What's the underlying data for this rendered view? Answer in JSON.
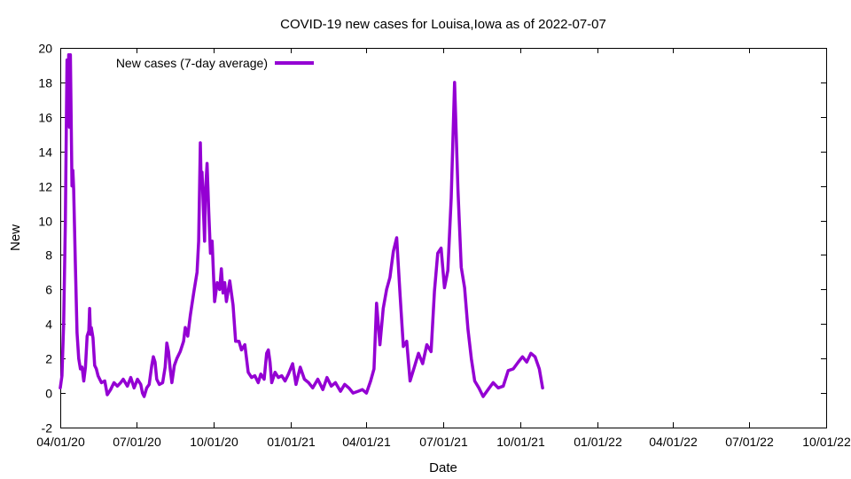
{
  "chart_data": {
    "type": "line",
    "title": "COVID-19 new cases for Louisa,Iowa as of 2022-07-07",
    "xlabel": "Date",
    "ylabel": "New",
    "ylim": [
      -2,
      20
    ],
    "yticks": [
      -2,
      0,
      2,
      4,
      6,
      8,
      10,
      12,
      14,
      16,
      18,
      20
    ],
    "xlim": [
      "2020-04-01",
      "2022-10-01"
    ],
    "xticks": [
      "2020-04-01",
      "2020-07-01",
      "2020-10-01",
      "2021-01-01",
      "2021-04-01",
      "2021-07-01",
      "2021-10-01",
      "2022-01-01",
      "2022-04-01",
      "2022-07-01",
      "2022-10-01"
    ],
    "xtick_labels": [
      "04/01/20",
      "07/01/20",
      "10/01/20",
      "01/01/21",
      "04/01/21",
      "07/01/21",
      "10/01/21",
      "01/01/22",
      "04/01/22",
      "07/01/22",
      "10/01/22"
    ],
    "legend_position": "top-left",
    "grid": false,
    "color": "#9400d3",
    "series": [
      {
        "name": "New cases (7-day average)",
        "points": [
          [
            "2020-04-01",
            0.3
          ],
          [
            "2020-04-03",
            1.0
          ],
          [
            "2020-04-05",
            4.0
          ],
          [
            "2020-04-07",
            9.8
          ],
          [
            "2020-04-09",
            19.3
          ],
          [
            "2020-04-10",
            15.5
          ],
          [
            "2020-04-11",
            19.6
          ],
          [
            "2020-04-12",
            15.4
          ],
          [
            "2020-04-13",
            19.6
          ],
          [
            "2020-04-15",
            12.0
          ],
          [
            "2020-04-16",
            12.9
          ],
          [
            "2020-04-17",
            11.8
          ],
          [
            "2020-04-19",
            7.5
          ],
          [
            "2020-04-21",
            3.5
          ],
          [
            "2020-04-23",
            2.0
          ],
          [
            "2020-04-25",
            1.4
          ],
          [
            "2020-04-27",
            1.5
          ],
          [
            "2020-04-29",
            0.7
          ],
          [
            "2020-05-01",
            1.5
          ],
          [
            "2020-05-03",
            3.3
          ],
          [
            "2020-05-05",
            3.6
          ],
          [
            "2020-05-06",
            4.9
          ],
          [
            "2020-05-07",
            3.4
          ],
          [
            "2020-05-08",
            3.8
          ],
          [
            "2020-05-10",
            3.2
          ],
          [
            "2020-05-12",
            1.6
          ],
          [
            "2020-05-14",
            1.4
          ],
          [
            "2020-05-16",
            1.0
          ],
          [
            "2020-05-20",
            0.6
          ],
          [
            "2020-05-24",
            0.7
          ],
          [
            "2020-05-27",
            -0.1
          ],
          [
            "2020-05-31",
            0.2
          ],
          [
            "2020-06-04",
            0.6
          ],
          [
            "2020-06-08",
            0.4
          ],
          [
            "2020-06-12",
            0.6
          ],
          [
            "2020-06-15",
            0.8
          ],
          [
            "2020-06-20",
            0.4
          ],
          [
            "2020-06-24",
            0.9
          ],
          [
            "2020-06-28",
            0.3
          ],
          [
            "2020-07-02",
            0.8
          ],
          [
            "2020-07-06",
            0.5
          ],
          [
            "2020-07-08",
            0.0
          ],
          [
            "2020-07-10",
            -0.2
          ],
          [
            "2020-07-13",
            0.3
          ],
          [
            "2020-07-16",
            0.5
          ],
          [
            "2020-07-19",
            1.6
          ],
          [
            "2020-07-21",
            2.1
          ],
          [
            "2020-07-23",
            1.8
          ],
          [
            "2020-07-25",
            0.8
          ],
          [
            "2020-07-28",
            0.5
          ],
          [
            "2020-08-01",
            0.6
          ],
          [
            "2020-08-04",
            1.5
          ],
          [
            "2020-08-06",
            2.9
          ],
          [
            "2020-08-08",
            2.4
          ],
          [
            "2020-08-10",
            1.4
          ],
          [
            "2020-08-12",
            0.6
          ],
          [
            "2020-08-15",
            1.6
          ],
          [
            "2020-08-18",
            2.0
          ],
          [
            "2020-08-22",
            2.4
          ],
          [
            "2020-08-26",
            3.0
          ],
          [
            "2020-08-28",
            3.8
          ],
          [
            "2020-08-31",
            3.3
          ],
          [
            "2020-09-03",
            4.5
          ],
          [
            "2020-09-07",
            5.8
          ],
          [
            "2020-09-11",
            7.0
          ],
          [
            "2020-09-13",
            8.8
          ],
          [
            "2020-09-15",
            14.5
          ],
          [
            "2020-09-16",
            12.0
          ],
          [
            "2020-09-17",
            12.8
          ],
          [
            "2020-09-20",
            8.8
          ],
          [
            "2020-09-21",
            11.6
          ],
          [
            "2020-09-23",
            13.3
          ],
          [
            "2020-09-25",
            10.5
          ],
          [
            "2020-09-27",
            8.1
          ],
          [
            "2020-09-29",
            8.8
          ],
          [
            "2020-10-02",
            5.3
          ],
          [
            "2020-10-05",
            6.4
          ],
          [
            "2020-10-08",
            6.0
          ],
          [
            "2020-10-10",
            7.2
          ],
          [
            "2020-10-12",
            5.8
          ],
          [
            "2020-10-14",
            6.4
          ],
          [
            "2020-10-16",
            5.3
          ],
          [
            "2020-10-20",
            6.5
          ],
          [
            "2020-10-24",
            5.1
          ],
          [
            "2020-10-27",
            3.0
          ],
          [
            "2020-10-31",
            3.0
          ],
          [
            "2020-11-03",
            2.5
          ],
          [
            "2020-11-07",
            2.8
          ],
          [
            "2020-11-11",
            1.2
          ],
          [
            "2020-11-15",
            0.9
          ],
          [
            "2020-11-19",
            1.0
          ],
          [
            "2020-11-23",
            0.6
          ],
          [
            "2020-11-26",
            1.1
          ],
          [
            "2020-11-30",
            0.8
          ],
          [
            "2020-12-03",
            2.3
          ],
          [
            "2020-12-05",
            2.5
          ],
          [
            "2020-12-07",
            1.8
          ],
          [
            "2020-12-09",
            0.6
          ],
          [
            "2020-12-13",
            1.2
          ],
          [
            "2020-12-17",
            0.9
          ],
          [
            "2020-12-21",
            1.0
          ],
          [
            "2020-12-25",
            0.7
          ],
          [
            "2020-12-29",
            1.1
          ],
          [
            "2021-01-03",
            1.7
          ],
          [
            "2021-01-07",
            0.5
          ],
          [
            "2021-01-12",
            1.5
          ],
          [
            "2021-01-17",
            0.8
          ],
          [
            "2021-01-22",
            0.6
          ],
          [
            "2021-01-27",
            0.3
          ],
          [
            "2021-02-02",
            0.8
          ],
          [
            "2021-02-08",
            0.2
          ],
          [
            "2021-02-13",
            0.9
          ],
          [
            "2021-02-18",
            0.4
          ],
          [
            "2021-02-23",
            0.6
          ],
          [
            "2021-03-01",
            0.1
          ],
          [
            "2021-03-06",
            0.5
          ],
          [
            "2021-03-11",
            0.3
          ],
          [
            "2021-03-16",
            0.0
          ],
          [
            "2021-03-22",
            0.1
          ],
          [
            "2021-03-27",
            0.2
          ],
          [
            "2021-04-01",
            0.0
          ],
          [
            "2021-04-06",
            0.7
          ],
          [
            "2021-04-10",
            1.4
          ],
          [
            "2021-04-13",
            5.2
          ],
          [
            "2021-04-17",
            2.8
          ],
          [
            "2021-04-21",
            4.9
          ],
          [
            "2021-04-25",
            6.0
          ],
          [
            "2021-04-29",
            6.7
          ],
          [
            "2021-05-03",
            8.2
          ],
          [
            "2021-05-07",
            9.0
          ],
          [
            "2021-05-11",
            5.7
          ],
          [
            "2021-05-15",
            2.7
          ],
          [
            "2021-05-19",
            3.0
          ],
          [
            "2021-05-23",
            0.7
          ],
          [
            "2021-05-28",
            1.5
          ],
          [
            "2021-06-02",
            2.3
          ],
          [
            "2021-06-07",
            1.7
          ],
          [
            "2021-06-12",
            2.8
          ],
          [
            "2021-06-17",
            2.4
          ],
          [
            "2021-06-21",
            5.9
          ],
          [
            "2021-06-25",
            8.1
          ],
          [
            "2021-06-29",
            8.4
          ],
          [
            "2021-07-03",
            6.1
          ],
          [
            "2021-07-07",
            7.1
          ],
          [
            "2021-07-11",
            11.3
          ],
          [
            "2021-07-15",
            18.0
          ],
          [
            "2021-07-19",
            11.8
          ],
          [
            "2021-07-23",
            7.3
          ],
          [
            "2021-07-27",
            6.1
          ],
          [
            "2021-07-31",
            3.7
          ],
          [
            "2021-08-04",
            2.0
          ],
          [
            "2021-08-08",
            0.7
          ],
          [
            "2021-08-13",
            0.3
          ],
          [
            "2021-08-18",
            -0.2
          ],
          [
            "2021-08-24",
            0.2
          ],
          [
            "2021-08-30",
            0.6
          ],
          [
            "2021-09-05",
            0.3
          ],
          [
            "2021-09-11",
            0.4
          ],
          [
            "2021-09-17",
            1.3
          ],
          [
            "2021-09-23",
            1.4
          ],
          [
            "2021-09-29",
            1.8
          ],
          [
            "2021-10-04",
            2.1
          ],
          [
            "2021-10-09",
            1.8
          ],
          [
            "2021-10-14",
            2.3
          ],
          [
            "2021-10-19",
            2.1
          ],
          [
            "2021-10-24",
            1.4
          ],
          [
            "2021-10-28",
            0.3
          ]
        ]
      }
    ]
  }
}
